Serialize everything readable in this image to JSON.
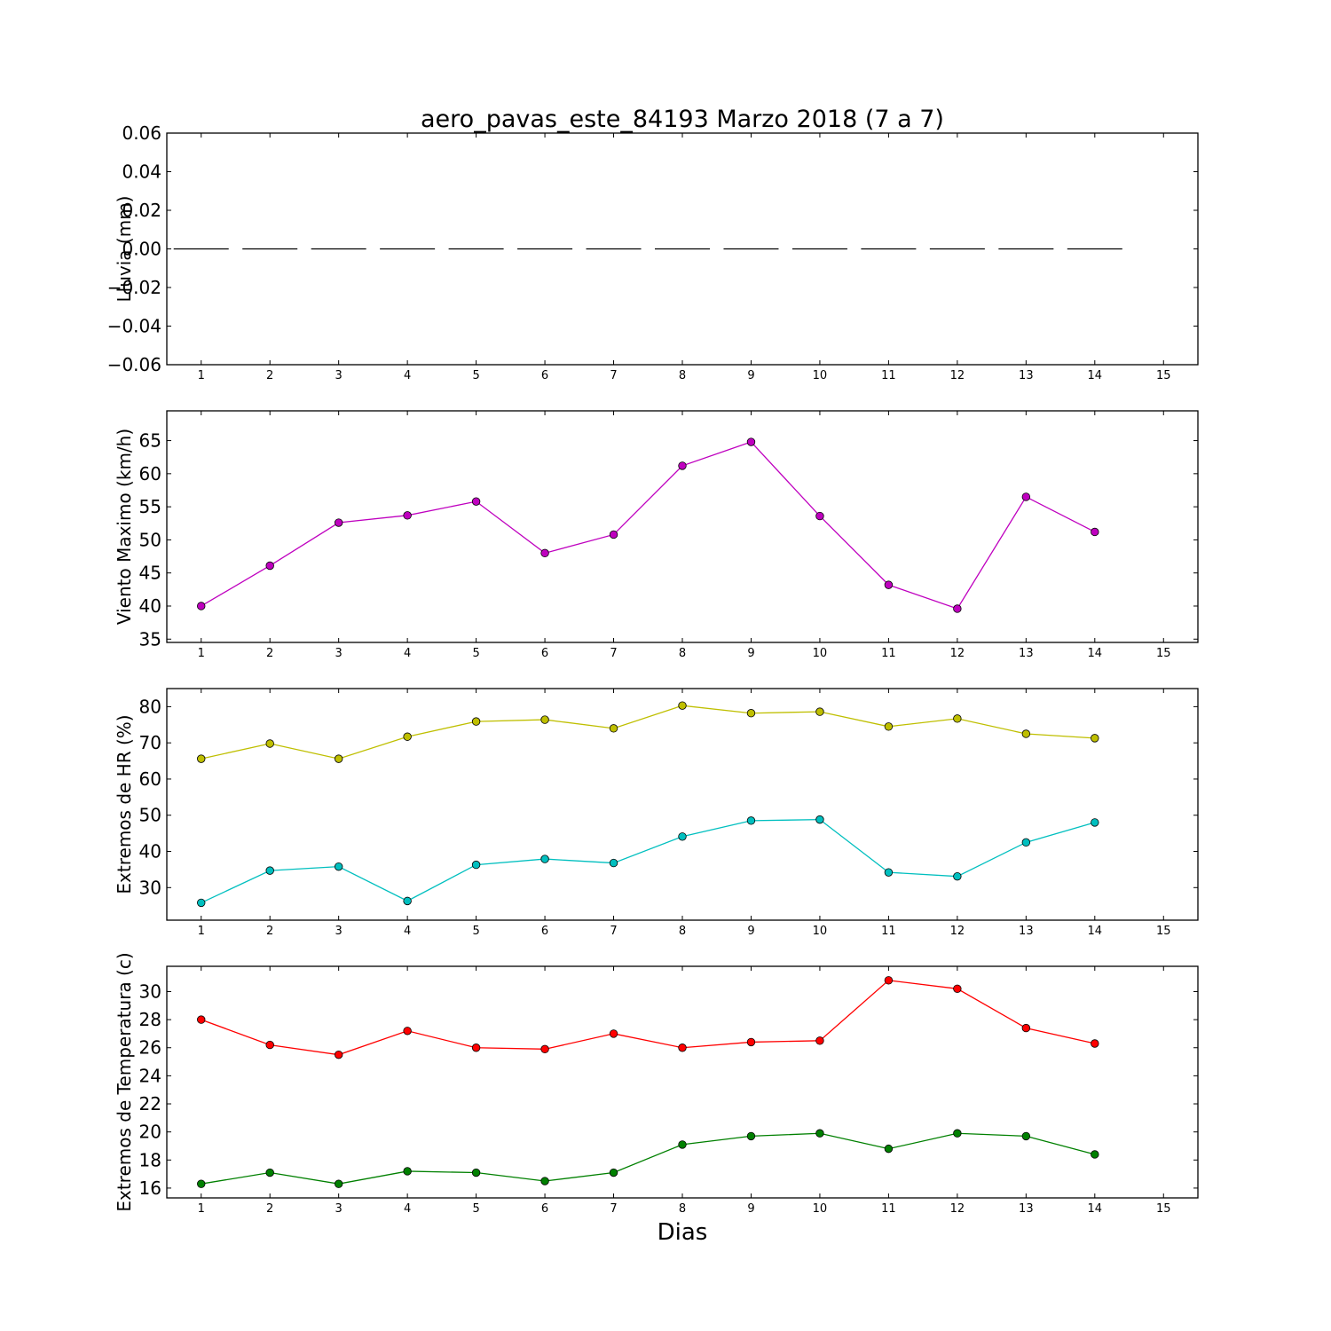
{
  "title": "aero_pavas_este_84193 Marzo 2018  (7 a 7)",
  "xlabel": "Dias",
  "chart_data": [
    {
      "type": "bar",
      "ylabel": "Lluvia (mm)",
      "ylim": [
        -0.06,
        0.06
      ],
      "yticks": [
        "0.06",
        "0.04",
        "0.02",
        "0.00",
        "−0.02",
        "−0.04",
        "−0.06"
      ],
      "ytick_values": [
        0.06,
        0.04,
        0.02,
        0.0,
        -0.02,
        -0.04,
        -0.06
      ],
      "xlim": [
        0.5,
        15.5
      ],
      "xticks": [
        1,
        2,
        3,
        4,
        5,
        6,
        7,
        8,
        9,
        10,
        11,
        12,
        13,
        14,
        15
      ],
      "x": [
        1,
        2,
        3,
        4,
        5,
        6,
        7,
        8,
        9,
        10,
        11,
        12,
        13,
        14
      ],
      "series": [
        {
          "values": [
            0,
            0,
            0,
            0,
            0,
            0,
            0,
            0,
            0,
            0,
            0,
            0,
            0,
            0
          ],
          "color": "#000000"
        }
      ]
    },
    {
      "type": "line",
      "ylabel": "Viento Maximo (km/h)",
      "ylim": [
        34.5,
        69.5
      ],
      "yticks": [
        "65",
        "60",
        "55",
        "50",
        "45",
        "40",
        "35"
      ],
      "ytick_values": [
        65,
        60,
        55,
        50,
        45,
        40,
        35
      ],
      "xlim": [
        0.5,
        15.5
      ],
      "xticks": [
        1,
        2,
        3,
        4,
        5,
        6,
        7,
        8,
        9,
        10,
        11,
        12,
        13,
        14,
        15
      ],
      "x": [
        1,
        2,
        3,
        4,
        5,
        6,
        7,
        8,
        9,
        10,
        11,
        12,
        13,
        14
      ],
      "series": [
        {
          "values": [
            40.0,
            46.1,
            52.6,
            53.7,
            55.8,
            48.0,
            50.8,
            61.2,
            64.8,
            53.6,
            43.2,
            39.6,
            56.5,
            51.2
          ],
          "color": "#bf00bf"
        }
      ]
    },
    {
      "type": "line",
      "ylabel": "Extremos de HR (%)",
      "ylim": [
        21,
        85
      ],
      "yticks": [
        "80",
        "70",
        "60",
        "50",
        "40",
        "30"
      ],
      "ytick_values": [
        80,
        70,
        60,
        50,
        40,
        30
      ],
      "xlim": [
        0.5,
        15.5
      ],
      "xticks": [
        1,
        2,
        3,
        4,
        5,
        6,
        7,
        8,
        9,
        10,
        11,
        12,
        13,
        14,
        15
      ],
      "x": [
        1,
        2,
        3,
        4,
        5,
        6,
        7,
        8,
        9,
        10,
        11,
        12,
        13,
        14
      ],
      "series": [
        {
          "values": [
            65.6,
            69.8,
            65.6,
            71.7,
            75.9,
            76.4,
            74.0,
            80.3,
            78.2,
            78.6,
            74.5,
            76.7,
            72.5,
            71.3
          ],
          "color": "#bfbf00"
        },
        {
          "values": [
            25.8,
            34.7,
            35.8,
            26.3,
            36.3,
            37.9,
            36.8,
            44.1,
            48.5,
            48.8,
            34.2,
            33.1,
            42.5,
            48.0
          ],
          "color": "#00bfbf"
        }
      ]
    },
    {
      "type": "line",
      "ylabel": "Extremos de Temperatura (c)",
      "ylim": [
        15.3,
        31.8
      ],
      "yticks": [
        "30",
        "28",
        "26",
        "24",
        "22",
        "20",
        "18",
        "16"
      ],
      "ytick_values": [
        30,
        28,
        26,
        24,
        22,
        20,
        18,
        16
      ],
      "xlim": [
        0.5,
        15.5
      ],
      "xticks": [
        1,
        2,
        3,
        4,
        5,
        6,
        7,
        8,
        9,
        10,
        11,
        12,
        13,
        14,
        15
      ],
      "x": [
        1,
        2,
        3,
        4,
        5,
        6,
        7,
        8,
        9,
        10,
        11,
        12,
        13,
        14
      ],
      "series": [
        {
          "values": [
            28.0,
            26.2,
            25.5,
            27.2,
            26.0,
            25.9,
            27.0,
            26.0,
            26.4,
            26.5,
            30.8,
            30.2,
            27.4,
            26.3
          ],
          "color": "#ff0000"
        },
        {
          "values": [
            16.3,
            17.1,
            16.3,
            17.2,
            17.1,
            16.5,
            17.1,
            19.1,
            19.7,
            19.9,
            18.8,
            19.9,
            19.7,
            18.4
          ],
          "color": "#008000"
        }
      ]
    }
  ]
}
